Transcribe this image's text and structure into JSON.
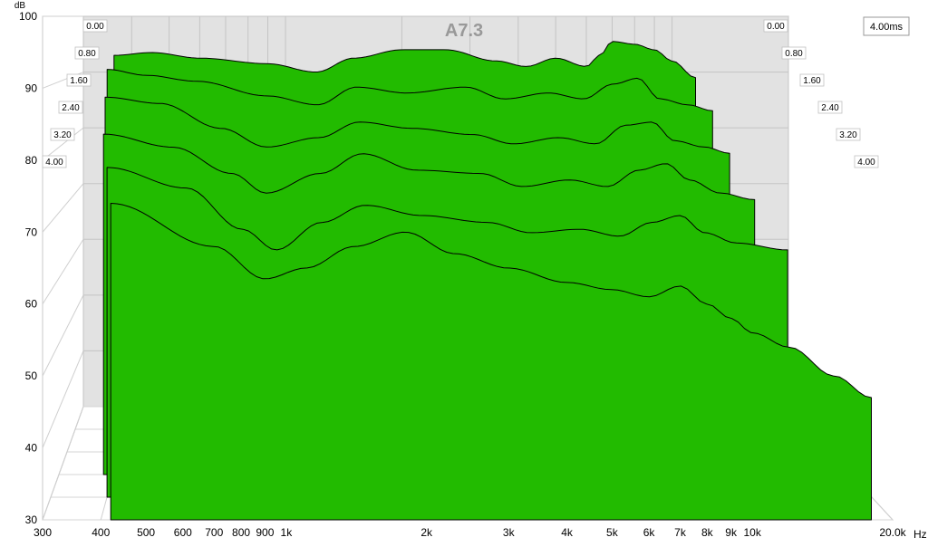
{
  "chart_data": {
    "type": "waterfall",
    "title": "A7.3",
    "xlabel_unit": "Hz",
    "ylabel_unit": "dB",
    "xscale": "log",
    "xlim": [
      300,
      20000
    ],
    "ylim": [
      30,
      100
    ],
    "x_ticks": [
      {
        "value": 300,
        "label": "300"
      },
      {
        "value": 400,
        "label": "400"
      },
      {
        "value": 500,
        "label": "500"
      },
      {
        "value": 600,
        "label": "600"
      },
      {
        "value": 700,
        "label": "700"
      },
      {
        "value": 800,
        "label": "800"
      },
      {
        "value": 900,
        "label": "900"
      },
      {
        "value": 1000,
        "label": "1k"
      },
      {
        "value": 2000,
        "label": "2k"
      },
      {
        "value": 3000,
        "label": "3k"
      },
      {
        "value": 4000,
        "label": "4k"
      },
      {
        "value": 5000,
        "label": "5k"
      },
      {
        "value": 6000,
        "label": "6k"
      },
      {
        "value": 7000,
        "label": "7k"
      },
      {
        "value": 8000,
        "label": "8k"
      },
      {
        "value": 9000,
        "label": "9k"
      },
      {
        "value": 10000,
        "label": "10k"
      },
      {
        "value": 20000,
        "label": "20.0k"
      }
    ],
    "y_ticks": [
      30,
      40,
      50,
      60,
      70,
      80,
      90,
      100
    ],
    "time_unit": "ms",
    "time_max_label": "4.00ms",
    "time_ticks": [
      "0.00",
      "0.80",
      "1.60",
      "2.40",
      "3.20",
      "4.00"
    ],
    "fill_color": "#22bb00",
    "line_color": "#000000",
    "grid": true,
    "slices": [
      {
        "t": 0.0,
        "points": [
          [
            360,
            93
          ],
          [
            450,
            93.5
          ],
          [
            600,
            92.5
          ],
          [
            900,
            91.5
          ],
          [
            1200,
            90
          ],
          [
            1500,
            92.5
          ],
          [
            2000,
            94
          ],
          [
            2600,
            94
          ],
          [
            3500,
            92
          ],
          [
            4200,
            91
          ],
          [
            5000,
            92.5
          ],
          [
            6000,
            91
          ],
          [
            6500,
            93
          ],
          [
            7000,
            95.5
          ],
          [
            8000,
            95
          ],
          [
            9000,
            94
          ],
          [
            10000,
            92
          ],
          [
            11500,
            89
          ]
        ]
      },
      {
        "t": 0.8,
        "points": [
          [
            360,
            91
          ],
          [
            450,
            90
          ],
          [
            600,
            89
          ],
          [
            900,
            86.5
          ],
          [
            1200,
            85
          ],
          [
            1500,
            88
          ],
          [
            2000,
            87
          ],
          [
            2800,
            88
          ],
          [
            3500,
            86
          ],
          [
            4500,
            87
          ],
          [
            5500,
            86
          ],
          [
            6500,
            88.5
          ],
          [
            7500,
            89.5
          ],
          [
            8500,
            86
          ],
          [
            10000,
            85
          ],
          [
            11500,
            84
          ]
        ]
      },
      {
        "t": 1.6,
        "points": [
          [
            370,
            87
          ],
          [
            500,
            86
          ],
          [
            700,
            82
          ],
          [
            900,
            79
          ],
          [
            1200,
            80.5
          ],
          [
            1500,
            83
          ],
          [
            2000,
            82
          ],
          [
            2800,
            81
          ],
          [
            3500,
            79.5
          ],
          [
            4500,
            80.5
          ],
          [
            5500,
            79.5
          ],
          [
            6500,
            82.5
          ],
          [
            7500,
            83
          ],
          [
            8500,
            80
          ],
          [
            10000,
            79
          ],
          [
            11500,
            78
          ]
        ]
      },
      {
        "t": 2.4,
        "points": [
          [
            380,
            82
          ],
          [
            550,
            80
          ],
          [
            750,
            76
          ],
          [
            900,
            73
          ],
          [
            1200,
            76
          ],
          [
            1500,
            79
          ],
          [
            2000,
            76.5
          ],
          [
            2800,
            76
          ],
          [
            3500,
            74
          ],
          [
            4500,
            75
          ],
          [
            5500,
            74
          ],
          [
            6500,
            76.5
          ],
          [
            7500,
            77.5
          ],
          [
            8500,
            75
          ],
          [
            10000,
            73
          ],
          [
            12000,
            72
          ]
        ]
      },
      {
        "t": 3.2,
        "points": [
          [
            400,
            78
          ],
          [
            600,
            75
          ],
          [
            800,
            69
          ],
          [
            950,
            66
          ],
          [
            1200,
            70
          ],
          [
            1500,
            72.5
          ],
          [
            2000,
            71
          ],
          [
            2800,
            70
          ],
          [
            3500,
            68.5
          ],
          [
            4500,
            69
          ],
          [
            5500,
            68
          ],
          [
            6500,
            70
          ],
          [
            7500,
            71
          ],
          [
            8500,
            68.5
          ],
          [
            10000,
            67
          ],
          [
            13000,
            66
          ]
        ]
      },
      {
        "t": 4.0,
        "points": [
          [
            420,
            74
          ],
          [
            700,
            68
          ],
          [
            900,
            63.5
          ],
          [
            1100,
            65
          ],
          [
            1400,
            68
          ],
          [
            1800,
            70
          ],
          [
            2300,
            67
          ],
          [
            3000,
            65
          ],
          [
            4000,
            63
          ],
          [
            5000,
            62
          ],
          [
            6000,
            61
          ],
          [
            7000,
            62.5
          ],
          [
            8000,
            60
          ],
          [
            9000,
            58
          ],
          [
            10000,
            56
          ],
          [
            12000,
            54
          ],
          [
            15000,
            50
          ],
          [
            18000,
            47
          ]
        ]
      }
    ]
  }
}
